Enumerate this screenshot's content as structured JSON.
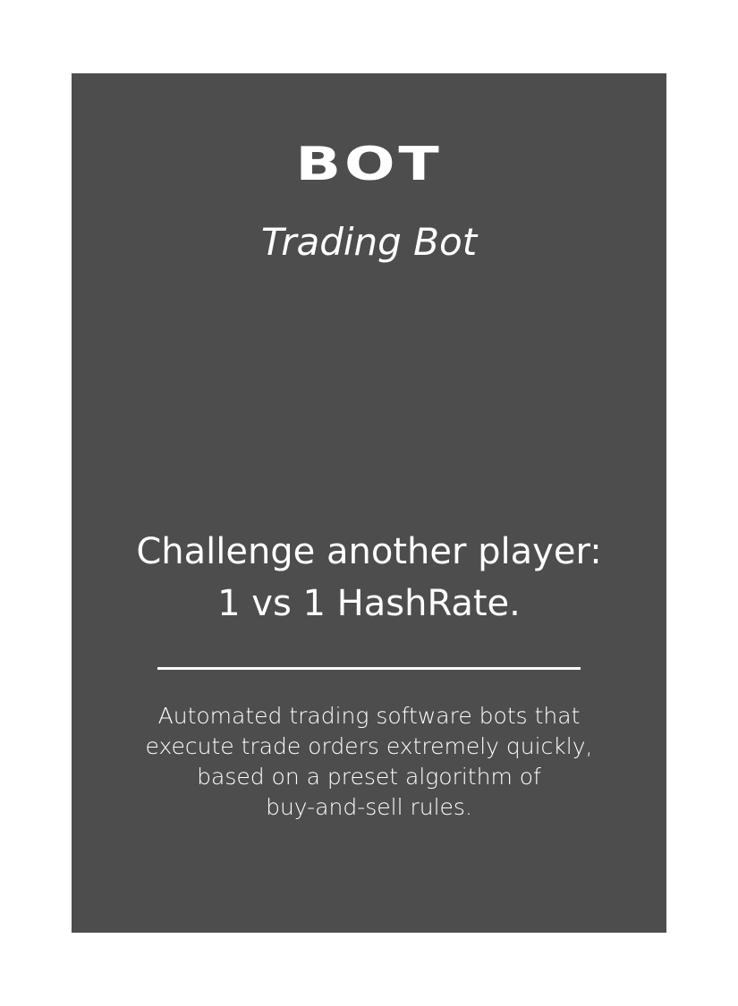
{
  "card": {
    "title": "BOT",
    "subtitle": "Trading Bot",
    "headline": {
      "line1": "Challenge another player:",
      "line2": "1 vs 1 HashRate."
    },
    "description": {
      "line1": "Automated trading software bots that",
      "line2": "execute trade orders extremely quickly,",
      "line3": "based on a preset algorithm of",
      "line4": "buy-and-sell rules."
    },
    "colors": {
      "card_background": "#4d4d4d",
      "text": "#ffffff",
      "page_background": "#ffffff"
    }
  }
}
